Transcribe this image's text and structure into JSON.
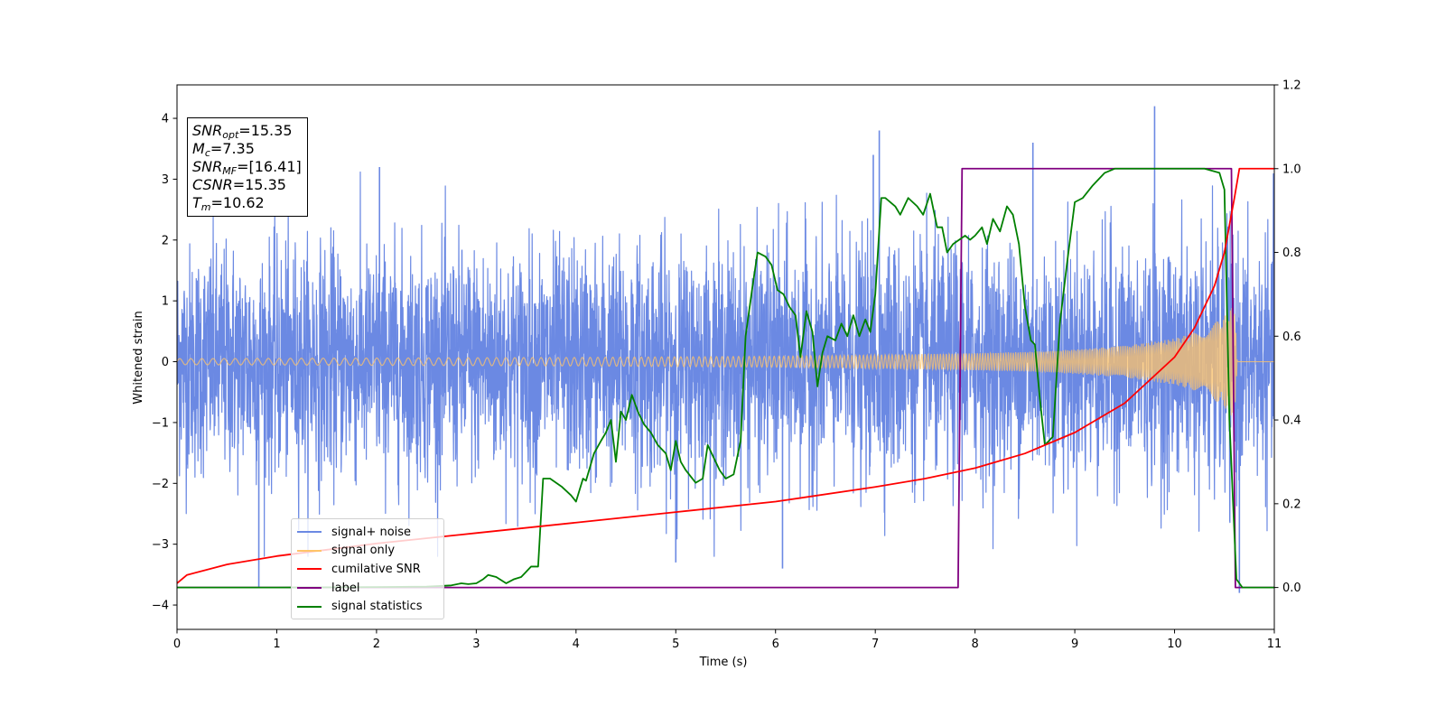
{
  "annotation": {
    "snr_opt": {
      "symbol": "SNR",
      "sub": "opt",
      "value": "=15.35"
    },
    "mc": {
      "symbol": "M",
      "sub": "c",
      "value": "=7.35"
    },
    "snr_mf": {
      "symbol": "SNR",
      "sub": "MF",
      "value": "=[16.41]"
    },
    "csnr": {
      "symbol": "CSNR",
      "value": "=15.35"
    },
    "tm": {
      "symbol": "T",
      "sub": "m",
      "value": "=10.62"
    }
  },
  "legend": {
    "items": [
      {
        "label": "signal+ noise",
        "color": "#6b89e3"
      },
      {
        "label": "signal only",
        "color": "#ffc469"
      },
      {
        "label": "cumilative SNR",
        "color": "#ff0000"
      },
      {
        "label": "label",
        "color": "#800080"
      },
      {
        "label": "signal statistics",
        "color": "#008000"
      }
    ]
  },
  "chart_data": {
    "type": "line",
    "xlabel": "Time (s)",
    "ylabel": "Whitened strain",
    "xlim": [
      0,
      11
    ],
    "ylim_left": [
      -4.4,
      4.55
    ],
    "ylim_right": [
      -0.1,
      1.2
    ],
    "xticks": [
      0,
      1,
      2,
      3,
      4,
      5,
      6,
      7,
      8,
      9,
      10,
      11
    ],
    "yticks_left": [
      -4,
      -3,
      -2,
      -1,
      0,
      1,
      2,
      3,
      4
    ],
    "yticks_right": [
      "0.0",
      "0.2",
      "0.4",
      "0.6",
      "0.8",
      "1.0",
      "1.2"
    ],
    "grid": false,
    "legend_position": "lower-left",
    "signal_noise": {
      "name": "signal+ noise",
      "axis": "left",
      "color": "#6b89e3",
      "x_range": [
        0,
        11
      ],
      "typical_amplitude": 1.1,
      "peaks": [
        {
          "x": 0.82,
          "y": -3.7
        },
        {
          "x": 2.03,
          "y": 3.2
        },
        {
          "x": 5.0,
          "y": -3.3
        },
        {
          "x": 6.07,
          "y": -3.4
        },
        {
          "x": 6.98,
          "y": 3.4
        },
        {
          "x": 7.04,
          "y": 3.8
        },
        {
          "x": 8.58,
          "y": 3.6
        },
        {
          "x": 9.8,
          "y": 4.2
        },
        {
          "x": 10.65,
          "y": -3.8
        }
      ]
    },
    "signal_only": {
      "name": "signal only",
      "axis": "left",
      "color": "#ffc469",
      "envelope": [
        [
          0,
          0.05
        ],
        [
          1,
          0.055
        ],
        [
          2,
          0.06
        ],
        [
          3,
          0.065
        ],
        [
          4,
          0.07
        ],
        [
          5,
          0.08
        ],
        [
          6,
          0.09
        ],
        [
          7,
          0.11
        ],
        [
          8,
          0.14
        ],
        [
          8.5,
          0.16
        ],
        [
          9,
          0.2
        ],
        [
          9.5,
          0.26
        ],
        [
          10,
          0.38
        ],
        [
          10.3,
          0.52
        ],
        [
          10.5,
          0.75
        ],
        [
          10.6,
          0.95
        ],
        [
          10.63,
          0.0
        ],
        [
          11,
          0.0
        ]
      ]
    },
    "cumulative_snr": {
      "name": "cumilative SNR",
      "axis": "right",
      "color": "#ff0000",
      "x": [
        0,
        0.1,
        0.5,
        1,
        2,
        3,
        4,
        5,
        6,
        7,
        7.5,
        8,
        8.5,
        9,
        9.5,
        10,
        10.2,
        10.4,
        10.5,
        10.6,
        10.65,
        11
      ],
      "y": [
        0.01,
        0.03,
        0.055,
        0.075,
        0.105,
        0.13,
        0.155,
        0.18,
        0.205,
        0.24,
        0.26,
        0.285,
        0.32,
        0.37,
        0.44,
        0.55,
        0.62,
        0.72,
        0.8,
        0.93,
        1.0,
        1.0
      ]
    },
    "label": {
      "name": "label",
      "axis": "right",
      "color": "#800080",
      "x": [
        0,
        7.83,
        7.87,
        10.57,
        10.61,
        11
      ],
      "y": [
        0,
        0,
        1,
        1,
        0,
        0
      ]
    },
    "signal_statistics": {
      "name": "signal statistics",
      "axis": "right",
      "color": "#008000",
      "x": [
        0,
        0.5,
        1,
        2,
        2.5,
        2.75,
        2.85,
        2.92,
        3.0,
        3.07,
        3.12,
        3.2,
        3.3,
        3.38,
        3.45,
        3.55,
        3.62,
        3.67,
        3.74,
        3.8,
        3.86,
        3.95,
        4.0,
        4.07,
        4.1,
        4.18,
        4.25,
        4.3,
        4.35,
        4.4,
        4.45,
        4.5,
        4.56,
        4.62,
        4.68,
        4.75,
        4.82,
        4.9,
        4.95,
        5.0,
        5.05,
        5.1,
        5.2,
        5.27,
        5.32,
        5.38,
        5.44,
        5.5,
        5.58,
        5.65,
        5.7,
        5.77,
        5.82,
        5.9,
        5.96,
        6.02,
        6.08,
        6.14,
        6.2,
        6.25,
        6.31,
        6.37,
        6.42,
        6.47,
        6.52,
        6.6,
        6.66,
        6.72,
        6.78,
        6.84,
        6.9,
        6.95,
        7.0,
        7.06,
        7.1,
        7.2,
        7.25,
        7.33,
        7.42,
        7.48,
        7.55,
        7.62,
        7.67,
        7.72,
        7.78,
        7.84,
        7.9,
        7.95,
        8.0,
        8.07,
        8.12,
        8.18,
        8.25,
        8.32,
        8.38,
        8.44,
        8.5,
        8.56,
        8.6,
        8.65,
        8.7,
        8.78,
        8.85,
        8.92,
        9.0,
        9.08,
        9.18,
        9.3,
        9.4,
        9.5,
        9.6,
        9.8,
        10.0,
        10.2,
        10.3,
        10.45,
        10.5,
        10.55,
        10.62,
        10.68,
        11
      ],
      "y": [
        0,
        0,
        0,
        0.001,
        0.002,
        0.005,
        0.01,
        0.008,
        0.01,
        0.02,
        0.03,
        0.025,
        0.01,
        0.02,
        0.025,
        0.05,
        0.05,
        0.26,
        0.26,
        0.25,
        0.24,
        0.22,
        0.205,
        0.26,
        0.255,
        0.32,
        0.35,
        0.37,
        0.4,
        0.3,
        0.42,
        0.4,
        0.46,
        0.42,
        0.39,
        0.37,
        0.34,
        0.32,
        0.28,
        0.35,
        0.3,
        0.28,
        0.25,
        0.26,
        0.34,
        0.31,
        0.28,
        0.26,
        0.27,
        0.35,
        0.6,
        0.72,
        0.8,
        0.79,
        0.77,
        0.71,
        0.7,
        0.67,
        0.65,
        0.55,
        0.66,
        0.61,
        0.48,
        0.56,
        0.6,
        0.59,
        0.63,
        0.6,
        0.65,
        0.6,
        0.64,
        0.61,
        0.7,
        0.93,
        0.93,
        0.91,
        0.89,
        0.93,
        0.91,
        0.89,
        0.94,
        0.86,
        0.86,
        0.8,
        0.82,
        0.83,
        0.84,
        0.83,
        0.84,
        0.86,
        0.82,
        0.88,
        0.85,
        0.91,
        0.89,
        0.82,
        0.67,
        0.59,
        0.58,
        0.45,
        0.34,
        0.36,
        0.63,
        0.77,
        0.92,
        0.93,
        0.96,
        0.99,
        1.0,
        1.0,
        1.0,
        1.0,
        1.0,
        1.0,
        1.0,
        0.99,
        0.95,
        0.4,
        0.02,
        0.0,
        0.0
      ]
    }
  }
}
